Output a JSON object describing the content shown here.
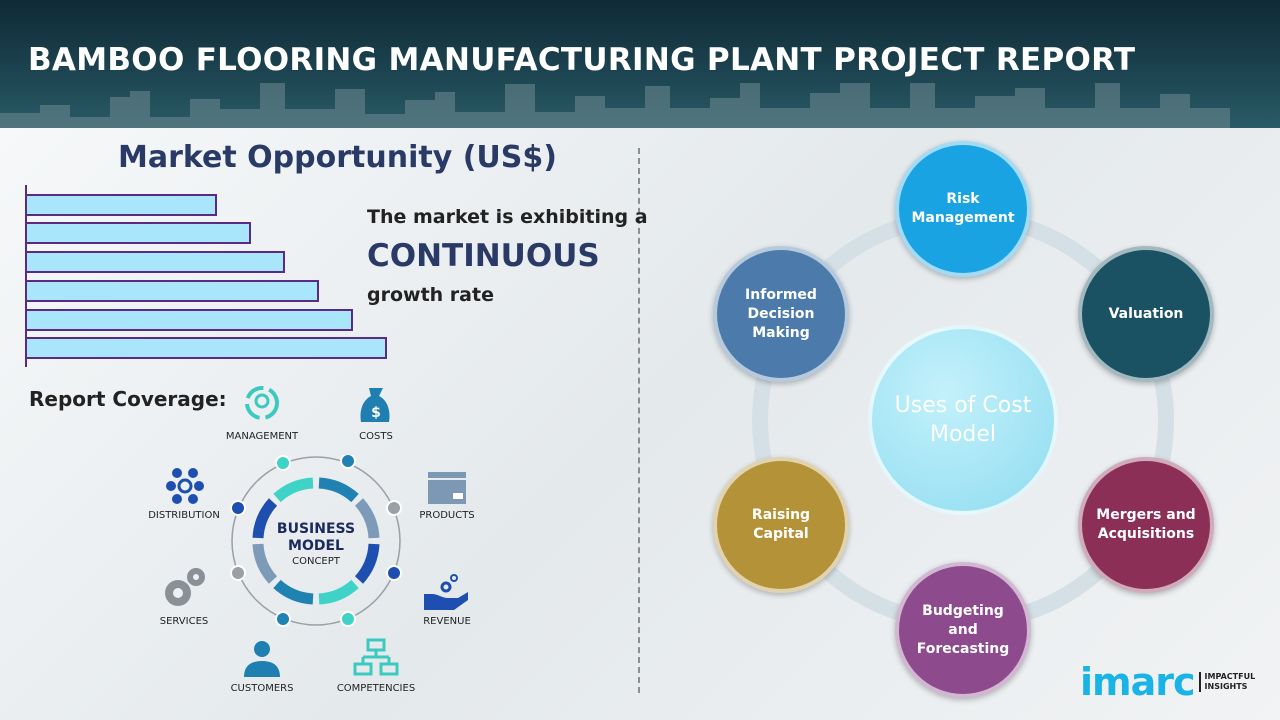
{
  "header": {
    "title": "BAMBOO FLOORING MANUFACTURING PLANT PROJECT REPORT"
  },
  "market": {
    "title": "Market Opportunity (US$)",
    "line1": "The market is exhibiting a",
    "line2": "CONTINUOUS",
    "line3": "growth rate"
  },
  "bar_levels": [
    1,
    2,
    3,
    4,
    5,
    6
  ],
  "coverage": {
    "title": "Report Coverage:",
    "center_line1": "BUSINESS",
    "center_line2": "MODEL",
    "center_line3": "CONCEPT",
    "items": [
      "MANAGEMENT",
      "COSTS",
      "DISTRIBUTION",
      "PRODUCTS",
      "SERVICES",
      "REVENUE",
      "CUSTOMERS",
      "COMPETENCIES"
    ]
  },
  "uses": {
    "center": "Uses of Cost Model",
    "items": [
      {
        "label": "Risk Management",
        "color": "#1aa3e3"
      },
      {
        "label": "Valuation",
        "color": "#1b5263"
      },
      {
        "label": "Mergers and Acquisitions",
        "color": "#8b2f57"
      },
      {
        "label": "Budgeting and Forecasting",
        "color": "#8d4b8d"
      },
      {
        "label": "Raising Capital",
        "color": "#b39238"
      },
      {
        "label": "Informed Decision Making",
        "color": "#4c7bab"
      }
    ]
  },
  "logo": {
    "name": "imarc",
    "tagline1": "IMPACTFUL",
    "tagline2": "INSIGHTS"
  }
}
